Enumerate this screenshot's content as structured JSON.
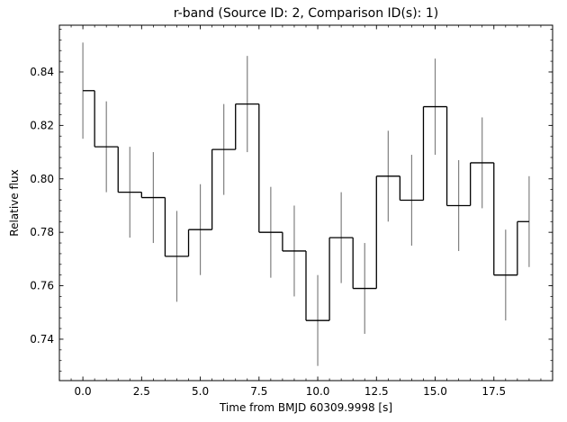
{
  "chart_data": {
    "type": "line",
    "title": "r-band (Source ID: 2, Comparison ID(s): 1)",
    "xlabel": "Time from BMJD 60309.9998 [s]",
    "ylabel": "Relative flux",
    "xlim": [
      -1.0,
      20.0
    ],
    "ylim": [
      0.7245,
      0.8575
    ],
    "grid": false,
    "x_ticks": [
      0.0,
      2.5,
      5.0,
      7.5,
      10.0,
      12.5,
      15.0,
      17.5
    ],
    "x_tick_labels": [
      "0.0",
      "2.5",
      "5.0",
      "7.5",
      "10.0",
      "12.5",
      "15.0",
      "17.5"
    ],
    "y_ticks": [
      0.74,
      0.76,
      0.78,
      0.8,
      0.82,
      0.84
    ],
    "y_tick_labels": [
      "0.74",
      "0.76",
      "0.78",
      "0.80",
      "0.82",
      "0.84"
    ],
    "series": [
      {
        "style": "steps-mid",
        "color": "#000000",
        "errorbar_color": "#808080",
        "x": [
          0,
          1,
          2,
          3,
          4,
          5,
          6,
          7,
          8,
          9,
          10,
          11,
          12,
          13,
          14,
          15,
          16,
          17,
          18,
          19
        ],
        "y": [
          0.833,
          0.812,
          0.795,
          0.793,
          0.771,
          0.781,
          0.811,
          0.828,
          0.78,
          0.773,
          0.747,
          0.778,
          0.759,
          0.801,
          0.792,
          0.827,
          0.79,
          0.806,
          0.764,
          0.784
        ],
        "yerr": [
          0.018,
          0.017,
          0.017,
          0.017,
          0.017,
          0.017,
          0.017,
          0.018,
          0.017,
          0.017,
          0.017,
          0.017,
          0.017,
          0.017,
          0.017,
          0.018,
          0.017,
          0.017,
          0.017,
          0.017
        ]
      }
    ]
  }
}
